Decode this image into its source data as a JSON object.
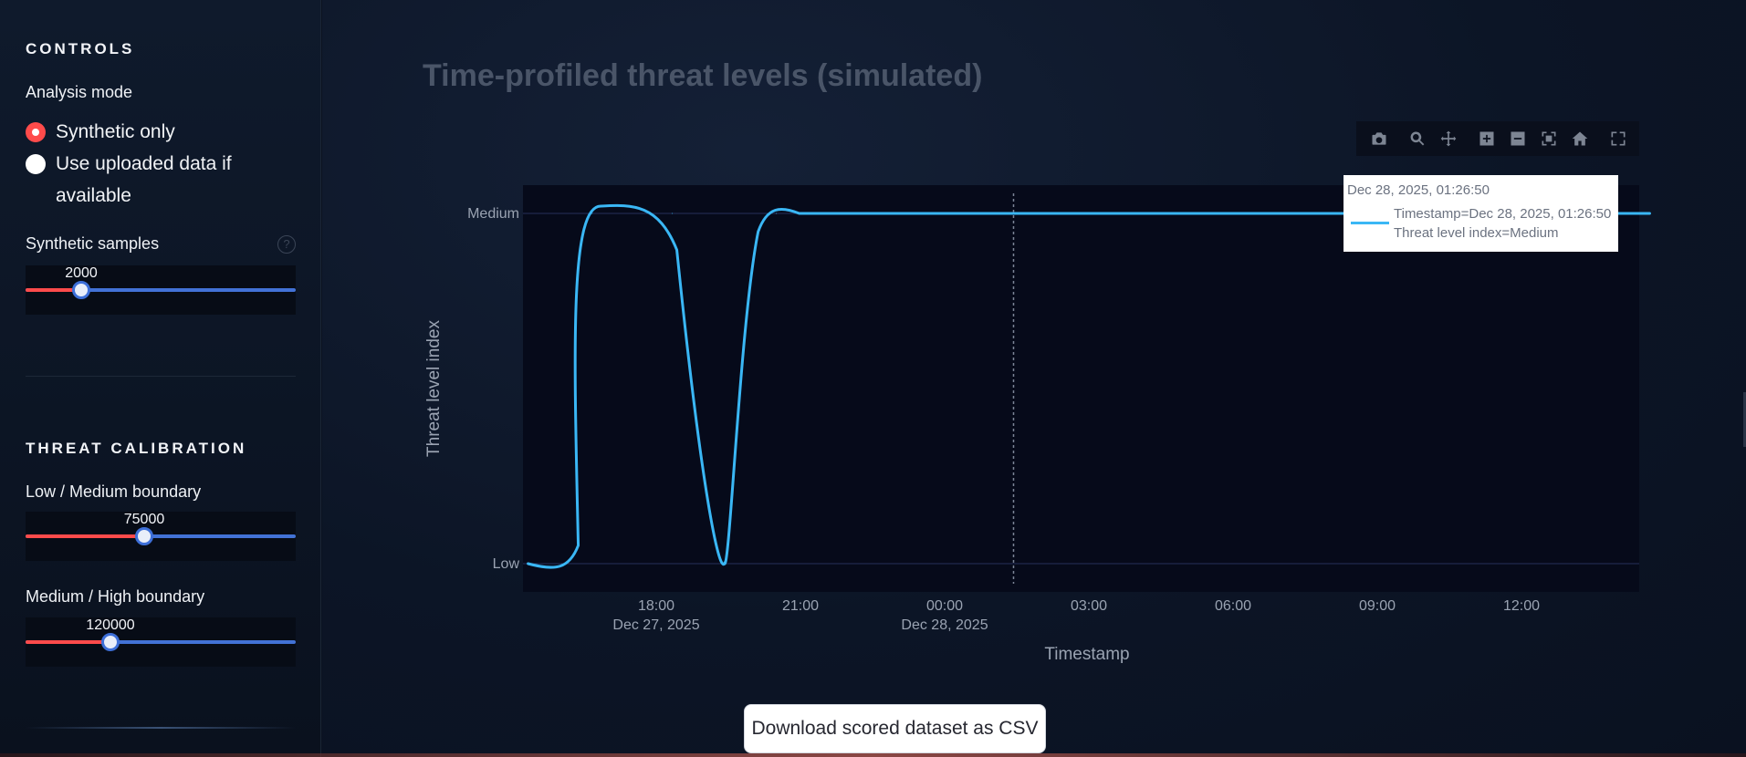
{
  "sidebar": {
    "controls_title": "CONTROLS",
    "analysis_mode_label": "Analysis mode",
    "radio_options": [
      {
        "label": "Synthetic only",
        "checked": true
      },
      {
        "label": "Use uploaded data if available",
        "checked": false
      }
    ],
    "synthetic_samples": {
      "label": "Synthetic samples",
      "value": "2000",
      "fraction": 0.21
    },
    "threat_calibration_title": "THREAT CALIBRATION",
    "low_medium": {
      "label": "Low / Medium boundary",
      "value": "75000",
      "fraction": 0.45
    },
    "medium_high": {
      "label": "Medium / High boundary",
      "value": "120000",
      "fraction": 0.31
    },
    "help_icon": "question-circle-icon"
  },
  "main": {
    "title": "Time-profiled threat levels (simulated)",
    "modebar_icons": [
      "camera-icon",
      "zoom-icon",
      "pan-icon",
      "zoom-in-icon",
      "zoom-out-icon",
      "autoscale-icon",
      "reset-axes-icon",
      "fullscreen-icon"
    ],
    "tooltip": {
      "header": "Dec 28, 2025, 01:26:50",
      "line1": "Timestamp=Dec 28, 2025, 01:26:50",
      "line2": "Threat level index=Medium"
    },
    "download_button": "Download scored dataset as CSV"
  },
  "chart_data": {
    "type": "line",
    "xlabel": "Timestamp",
    "ylabel": "Threat level index",
    "y_categories": [
      "Low",
      "Medium"
    ],
    "x_ticks": [
      {
        "label": "18:00",
        "sub": "Dec 27, 2025"
      },
      {
        "label": "21:00",
        "sub": ""
      },
      {
        "label": "00:00",
        "sub": "Dec 28, 2025"
      },
      {
        "label": "03:00",
        "sub": ""
      },
      {
        "label": "06:00",
        "sub": ""
      },
      {
        "label": "09:00",
        "sub": ""
      },
      {
        "label": "12:00",
        "sub": ""
      }
    ],
    "series": [
      {
        "color": "#3ab7f5",
        "points": [
          {
            "x": "Dec 27, 2025 15:20",
            "y": "Low"
          },
          {
            "x": "Dec 27, 2025 16:40",
            "y": "Medium"
          },
          {
            "x": "Dec 27, 2025 18:20",
            "y": "Medium"
          },
          {
            "x": "Dec 27, 2025 19:25",
            "y": "Low"
          },
          {
            "x": "Dec 27, 2025 20:30",
            "y": "Medium"
          },
          {
            "x": "Dec 28, 2025 01:26",
            "y": "Medium"
          },
          {
            "x": "Dec 28, 2025 14:40",
            "y": "Medium"
          }
        ]
      }
    ],
    "hover_x": "Dec 28, 2025, 01:26:50",
    "grid": true
  },
  "colors": {
    "accent": "#ff4b4b",
    "slider_track": "#4272d6",
    "series": "#3ab7f5"
  }
}
